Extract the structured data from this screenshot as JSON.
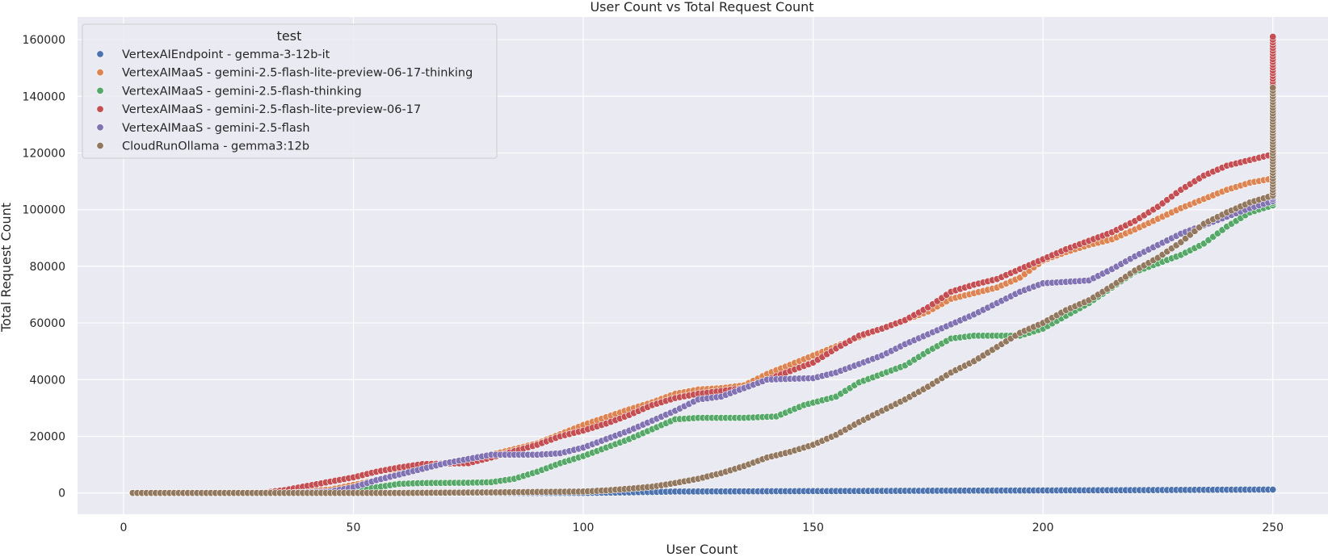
{
  "chart_data": {
    "type": "scatter",
    "title": "User Count vs Total Request Count",
    "xlabel": "User Count",
    "ylabel": "Total Request Count",
    "xlim": [
      -10,
      262
    ],
    "ylim": [
      -7500,
      168000
    ],
    "xticks": [
      0,
      50,
      100,
      150,
      200,
      250
    ],
    "yticks": [
      0,
      20000,
      40000,
      60000,
      80000,
      100000,
      120000,
      140000,
      160000
    ],
    "grid": true,
    "legend": {
      "title": "test",
      "position": "top-left"
    },
    "x_range": [
      2,
      250
    ],
    "series": [
      {
        "name": "VertexAIEndpoint - gemma-3-12b-it",
        "color": "#4c72b0",
        "points": [
          [
            2,
            0
          ],
          [
            50,
            0
          ],
          [
            100,
            0
          ],
          [
            110,
            200
          ],
          [
            120,
            500
          ],
          [
            140,
            600
          ],
          [
            160,
            700
          ],
          [
            180,
            800
          ],
          [
            200,
            900
          ],
          [
            220,
            1000
          ],
          [
            240,
            1150
          ],
          [
            250,
            1200
          ]
        ],
        "end_spread": [
          1200,
          1200
        ]
      },
      {
        "name": "VertexAIMaaS - gemini-2.5-flash-lite-preview-06-17-thinking",
        "color": "#dd8452",
        "points": [
          [
            2,
            0
          ],
          [
            28,
            0
          ],
          [
            35,
            300
          ],
          [
            45,
            1200
          ],
          [
            55,
            4500
          ],
          [
            62,
            8000
          ],
          [
            70,
            10500
          ],
          [
            80,
            13500
          ],
          [
            90,
            17500
          ],
          [
            100,
            24000
          ],
          [
            110,
            29500
          ],
          [
            115,
            32000
          ],
          [
            120,
            35000
          ],
          [
            125,
            36500
          ],
          [
            130,
            37000
          ],
          [
            135,
            38000
          ],
          [
            140,
            42000
          ],
          [
            150,
            48500
          ],
          [
            160,
            55000
          ],
          [
            170,
            61000
          ],
          [
            175,
            64000
          ],
          [
            180,
            68500
          ],
          [
            185,
            70500
          ],
          [
            190,
            72500
          ],
          [
            195,
            76000
          ],
          [
            200,
            82000
          ],
          [
            205,
            85000
          ],
          [
            210,
            87500
          ],
          [
            215,
            89500
          ],
          [
            220,
            93000
          ],
          [
            230,
            100500
          ],
          [
            240,
            107000
          ],
          [
            245,
            109500
          ],
          [
            250,
            111000
          ]
        ],
        "end_spread": [
          111000,
          112000
        ]
      },
      {
        "name": "VertexAIMaaS - gemini-2.5-flash-thinking",
        "color": "#55a868",
        "points": [
          [
            2,
            0
          ],
          [
            40,
            0
          ],
          [
            50,
            700
          ],
          [
            55,
            2000
          ],
          [
            60,
            3200
          ],
          [
            65,
            3500
          ],
          [
            75,
            3600
          ],
          [
            80,
            3800
          ],
          [
            85,
            5000
          ],
          [
            90,
            7500
          ],
          [
            95,
            10500
          ],
          [
            100,
            13000
          ],
          [
            105,
            16000
          ],
          [
            110,
            19000
          ],
          [
            115,
            22500
          ],
          [
            120,
            26000
          ],
          [
            125,
            26500
          ],
          [
            135,
            26500
          ],
          [
            142,
            27000
          ],
          [
            148,
            31000
          ],
          [
            155,
            34000
          ],
          [
            160,
            39000
          ],
          [
            170,
            45000
          ],
          [
            175,
            50000
          ],
          [
            180,
            54500
          ],
          [
            185,
            55500
          ],
          [
            195,
            55500
          ],
          [
            200,
            58000
          ],
          [
            210,
            67000
          ],
          [
            220,
            78000
          ],
          [
            225,
            81000
          ],
          [
            230,
            84000
          ],
          [
            235,
            88000
          ],
          [
            240,
            94000
          ],
          [
            245,
            99000
          ],
          [
            250,
            101500
          ]
        ],
        "end_spread": [
          101500,
          104000
        ]
      },
      {
        "name": "VertexAIMaaS - gemini-2.5-flash-lite-preview-06-17",
        "color": "#c44e52",
        "points": [
          [
            2,
            0
          ],
          [
            30,
            0
          ],
          [
            35,
            1000
          ],
          [
            40,
            2500
          ],
          [
            50,
            5500
          ],
          [
            55,
            7500
          ],
          [
            60,
            9000
          ],
          [
            65,
            10200
          ],
          [
            75,
            10500
          ],
          [
            80,
            12500
          ],
          [
            90,
            17000
          ],
          [
            95,
            20000
          ],
          [
            100,
            22000
          ],
          [
            105,
            24500
          ],
          [
            110,
            27500
          ],
          [
            115,
            31000
          ],
          [
            120,
            33500
          ],
          [
            125,
            35000
          ],
          [
            130,
            36000
          ],
          [
            135,
            37000
          ],
          [
            140,
            40000
          ],
          [
            145,
            43000
          ],
          [
            150,
            46000
          ],
          [
            155,
            51000
          ],
          [
            160,
            55500
          ],
          [
            165,
            58000
          ],
          [
            170,
            61000
          ],
          [
            175,
            65500
          ],
          [
            180,
            71000
          ],
          [
            185,
            73500
          ],
          [
            190,
            75500
          ],
          [
            195,
            79000
          ],
          [
            200,
            82500
          ],
          [
            205,
            86000
          ],
          [
            210,
            89000
          ],
          [
            215,
            92000
          ],
          [
            220,
            96000
          ],
          [
            225,
            101000
          ],
          [
            230,
            107000
          ],
          [
            235,
            112000
          ],
          [
            240,
            115500
          ],
          [
            245,
            117500
          ],
          [
            250,
            119500
          ]
        ],
        "end_spread": [
          119500,
          161000
        ]
      },
      {
        "name": "VertexAIMaaS - gemini-2.5-flash",
        "color": "#8172b3",
        "points": [
          [
            2,
            0
          ],
          [
            35,
            0
          ],
          [
            45,
            500
          ],
          [
            50,
            2000
          ],
          [
            55,
            4500
          ],
          [
            60,
            6500
          ],
          [
            65,
            8500
          ],
          [
            70,
            10500
          ],
          [
            75,
            12000
          ],
          [
            80,
            13500
          ],
          [
            90,
            13500
          ],
          [
            95,
            14000
          ],
          [
            100,
            16000
          ],
          [
            105,
            19000
          ],
          [
            110,
            22000
          ],
          [
            115,
            25500
          ],
          [
            120,
            29000
          ],
          [
            125,
            33000
          ],
          [
            130,
            34000
          ],
          [
            135,
            37000
          ],
          [
            140,
            40000
          ],
          [
            145,
            40300
          ],
          [
            150,
            40500
          ],
          [
            155,
            42500
          ],
          [
            160,
            45500
          ],
          [
            165,
            48500
          ],
          [
            170,
            52500
          ],
          [
            175,
            56000
          ],
          [
            180,
            59500
          ],
          [
            185,
            63000
          ],
          [
            190,
            67000
          ],
          [
            195,
            71000
          ],
          [
            200,
            74000
          ],
          [
            205,
            74500
          ],
          [
            210,
            75000
          ],
          [
            215,
            79000
          ],
          [
            220,
            83500
          ],
          [
            225,
            87500
          ],
          [
            230,
            91500
          ],
          [
            235,
            94500
          ],
          [
            240,
            97500
          ],
          [
            245,
            100500
          ],
          [
            250,
            103000
          ]
        ],
        "end_spread": [
          103000,
          104500
        ]
      },
      {
        "name": "CloudRunOllama - gemma3:12b",
        "color": "#937860",
        "points": [
          [
            2,
            0
          ],
          [
            60,
            0
          ],
          [
            80,
            200
          ],
          [
            100,
            500
          ],
          [
            105,
            900
          ],
          [
            110,
            1500
          ],
          [
            115,
            2200
          ],
          [
            120,
            3500
          ],
          [
            125,
            5000
          ],
          [
            130,
            7000
          ],
          [
            135,
            9500
          ],
          [
            140,
            12500
          ],
          [
            145,
            14500
          ],
          [
            150,
            17000
          ],
          [
            155,
            20500
          ],
          [
            160,
            25000
          ],
          [
            165,
            29000
          ],
          [
            170,
            33000
          ],
          [
            175,
            37500
          ],
          [
            180,
            42500
          ],
          [
            185,
            46500
          ],
          [
            190,
            51500
          ],
          [
            195,
            56500
          ],
          [
            200,
            60000
          ],
          [
            205,
            64500
          ],
          [
            210,
            68000
          ],
          [
            215,
            73000
          ],
          [
            220,
            78500
          ],
          [
            225,
            83000
          ],
          [
            230,
            88500
          ],
          [
            235,
            95000
          ],
          [
            240,
            99000
          ],
          [
            245,
            102500
          ],
          [
            250,
            105000
          ]
        ],
        "end_spread": [
          105000,
          143000
        ]
      }
    ]
  }
}
